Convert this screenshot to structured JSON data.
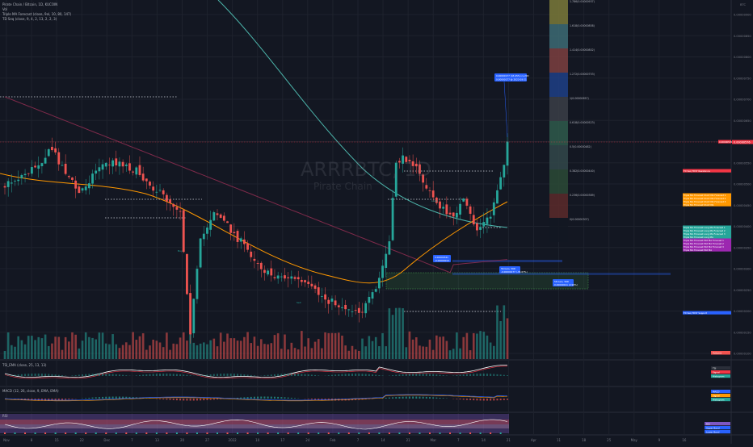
{
  "header": {
    "symbol": "Pirate Chain / Bitcoin, 1D, KUCOIN",
    "volume_label": "Vol",
    "indicator_1": "Triple MA Forecast (close, 9ol, 10, 80, 147)",
    "indicator_2": "TD Seq (close, 9, 4, 2, 13, 2, 2, 3)"
  },
  "watermark": {
    "ticker": "ARRRBTC, 1D",
    "name": "Pirate Chain"
  },
  "panes": {
    "tsi": "TSI_EMA (close, 25, 13, 13)",
    "macd": "MACD (12, 26, close, 9, EMA, EMA)",
    "rsi": "RSI"
  },
  "chart_data": {
    "type": "candlestick",
    "title": "Pirate Chain / Bitcoin, 1D, KUCOIN",
    "y_ticks": [
      "0.00000900",
      "0.00000850",
      "0.00000800",
      "0.00000750",
      "0.00000700",
      "0.00000650",
      "0.00000600",
      "0.00000550",
      "0.00000500",
      "0.00000450",
      "0.00000400",
      "0.00000350",
      "0.00000300",
      "0.00000250",
      "0.00000200",
      "0.00000150",
      "0.00000100"
    ],
    "x_ticks": [
      "Nov",
      "8",
      "15",
      "22",
      "Dec",
      "7",
      "13",
      "20",
      "27",
      "2022",
      "10",
      "17",
      "24",
      "Feb",
      "7",
      "14",
      "21",
      "Mar",
      "7",
      "14",
      "21",
      "Apr",
      "11",
      "18",
      "25",
      "May",
      "9",
      "16"
    ],
    "currency": "BTC",
    "last_price_label": "0.00000576",
    "fib_levels": [
      {
        "label": "1.786(0.00000937)",
        "color": "#7b7a3a"
      },
      {
        "label": "1.618(0.00000858)",
        "color": "#3d6b74"
      },
      {
        "label": "1.414(0.00000802)",
        "color": "#7d4040"
      },
      {
        "label": "1.272(0.00000753)",
        "color": "#1f3f86"
      },
      {
        "label": "1(0.00000657)",
        "color": "#3b3e47"
      },
      {
        "label": "0.618(0.00000523)",
        "color": "#2f5a4b"
      },
      {
        "label": "0.5(0.00000482)",
        "color": "#33484a"
      },
      {
        "label": "0.382(0.00000440)",
        "color": "#2b4a36"
      },
      {
        "label": "0.236(0.00000389)",
        "color": "#5c2a2a"
      },
      {
        "label": "0(0.00000307)",
        "color": "#131722"
      }
    ],
    "measure_label": {
      "line1": "0.00000177 (43.45%) rs 200",
      "line2": "0.00000177 @ 2022-03-21"
    },
    "price_labels": [
      {
        "text": "0.00000576",
        "color": "#f23645"
      },
      {
        "text": "TD Seq TDST Resistance",
        "color": "#f23645"
      },
      {
        "text": "Triple MA Forecast Short MA Forecast 1",
        "color": "#ff9800"
      },
      {
        "text": "Triple MA Forecast Short MA Forecast 2",
        "color": "#ff9800"
      },
      {
        "text": "Triple MA Forecast Short MA Forecast 3",
        "color": "#ff9800"
      },
      {
        "text": "Triple MA Forecast Short MA",
        "color": "#ff9800"
      },
      {
        "text": "Triple MA Forecast Long MA Forecast 1",
        "color": "#26a69a"
      },
      {
        "text": "Triple MA Forecast Long MA Forecast 2",
        "color": "#26a69a"
      },
      {
        "text": "Triple MA Forecast Long MA Forecast 3",
        "color": "#26a69a"
      },
      {
        "text": "Triple MA Forecast Long MA",
        "color": "#26a69a"
      },
      {
        "text": "Triple MA Forecast Mid MA Forecast 1",
        "color": "#9c27b0"
      },
      {
        "text": "Triple MA Forecast Mid MA Forecast 2",
        "color": "#9c27b0"
      },
      {
        "text": "Triple MA Forecast Mid MA Forecast 3",
        "color": "#9c27b0"
      },
      {
        "text": "Triple MA Forecast Mid MA",
        "color": "#9c27b0"
      },
      {
        "text": "TD Seq TDST Support",
        "color": "#2962ff"
      }
    ],
    "volume_label": "Volume",
    "tsi_labels": [
      "TSI",
      "Signal",
      "Histogram"
    ],
    "macd_labels": [
      "MACD",
      "Signal",
      "Histogram"
    ],
    "rsi_labels": [
      "RSI",
      "Upper Band",
      "Lower Band"
    ],
    "range_boxes": [
      {
        "line1": "56 bars, 56D",
        "line2": "-0.00000177 (-33.67%)"
      },
      {
        "line1": "56 bars, 56D",
        "line2": "0.00000011 (2.99%)"
      }
    ],
    "annotations": [
      "0.00000341",
      "-0.00000013",
      "Buy",
      "Sell",
      "Long"
    ]
  }
}
